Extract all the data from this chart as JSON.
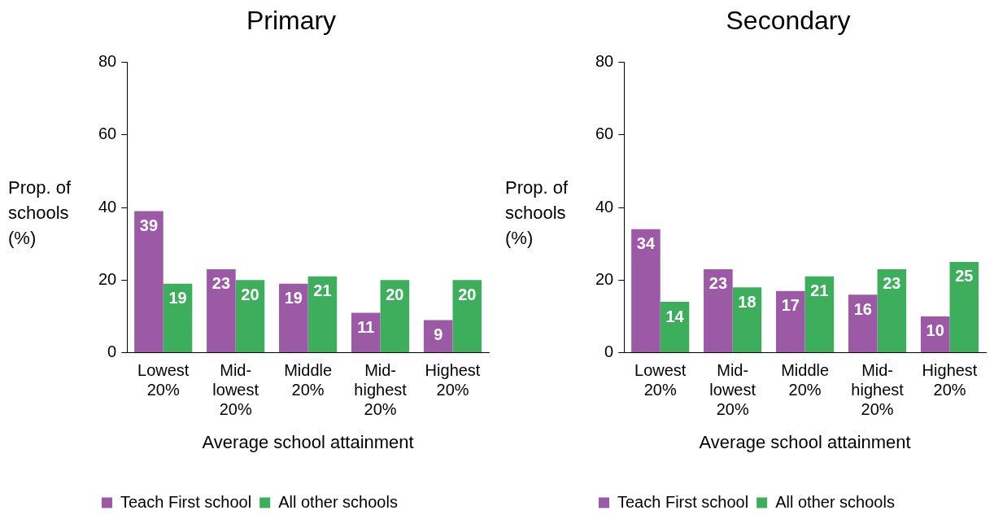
{
  "chart_data": [
    {
      "type": "bar",
      "title": "Primary",
      "xlabel": "Average school attainment",
      "ylabel": "Prop. of schools (%)",
      "categories": [
        "Lowest 20%",
        "Mid-lowest 20%",
        "Middle 20%",
        "Mid-highest 20%",
        "Highest 20%"
      ],
      "series": [
        {
          "name": "Teach First school",
          "color": "#9b59a6",
          "values": [
            39,
            23,
            19,
            11,
            9
          ]
        },
        {
          "name": "All other schools",
          "color": "#3cae5c",
          "values": [
            19,
            20,
            21,
            20,
            20
          ]
        }
      ],
      "ylim": [
        0,
        80
      ],
      "yticks": [
        0,
        20,
        40,
        60,
        80
      ],
      "grid": false,
      "legend": "bottom",
      "data_labels": true
    },
    {
      "type": "bar",
      "title": "Secondary",
      "xlabel": "Average school attainment",
      "ylabel": "Prop. of schools (%)",
      "categories": [
        "Lowest 20%",
        "Mid-lowest 20%",
        "Middle 20%",
        "Mid-highest 20%",
        "Highest 20%"
      ],
      "series": [
        {
          "name": "Teach First school",
          "color": "#9b59a6",
          "values": [
            34,
            23,
            17,
            16,
            10
          ]
        },
        {
          "name": "All other schools",
          "color": "#3cae5c",
          "values": [
            14,
            18,
            21,
            23,
            25
          ]
        }
      ],
      "ylim": [
        0,
        80
      ],
      "yticks": [
        0,
        20,
        40,
        60,
        80
      ],
      "grid": false,
      "legend": "bottom",
      "data_labels": true
    }
  ]
}
